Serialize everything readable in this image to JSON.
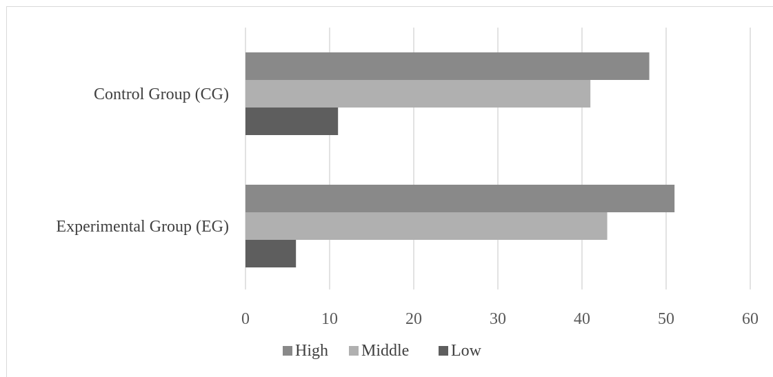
{
  "chart_data": {
    "type": "bar",
    "orientation": "horizontal",
    "categories": [
      "Control Group (CG)",
      "Experimental Group (EG)"
    ],
    "series": [
      {
        "name": "High",
        "values": [
          48,
          51
        ],
        "color": "#898989"
      },
      {
        "name": "Middle",
        "values": [
          41,
          43
        ],
        "color": "#b0b0b0"
      },
      {
        "name": "Low",
        "values": [
          11,
          6
        ],
        "color": "#5e5e5e"
      }
    ],
    "xlim": [
      0,
      60
    ],
    "xticks": [
      0,
      10,
      20,
      30,
      40,
      50,
      60
    ],
    "grid": true,
    "legend_position": "bottom"
  }
}
